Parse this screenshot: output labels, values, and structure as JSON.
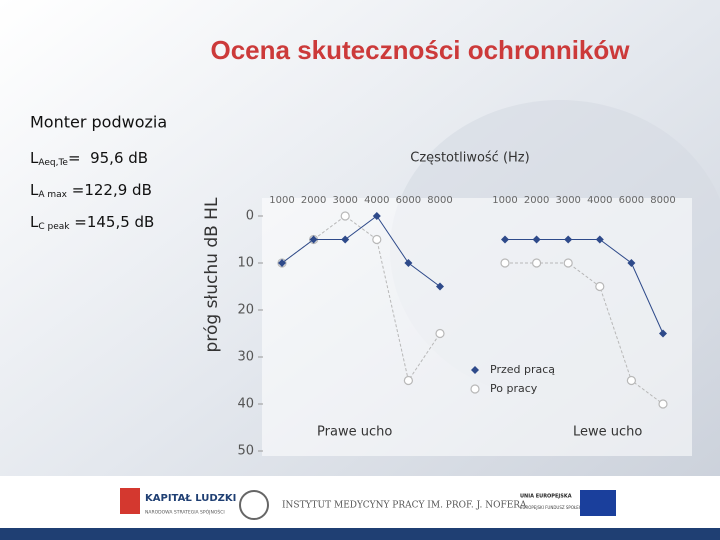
{
  "slide": {
    "title": "Ocena skuteczności ochronników",
    "subtitle": "Monter podwozia",
    "measures": [
      {
        "symbol": "L",
        "sub": "Aeq,Te",
        "value": "=  95,6 dB"
      },
      {
        "symbol": "L",
        "sub": "A max",
        "value": " =122,9 dB"
      },
      {
        "symbol": "L",
        "sub": "C peak",
        "value": " =145,5 dB"
      }
    ],
    "footer": {
      "logo1": "KAPITAŁ LUDZKI",
      "logo1_sub": "NARODOWA STRATEGIA SPÓJNOŚCI",
      "logo2": "INSTYTUT MEDYCYNY PRACY IM. PROF. J. NOFERA",
      "logo3": "UNIA EUROPEJSKA",
      "logo3_sub": "EUROPEJSKI FUNDUSZ SPOŁECZNY"
    }
  },
  "chart_data": {
    "type": "line",
    "x_label": "Częstotliwość (Hz)",
    "y_label": "próg słuchu dB HL",
    "ylim": [
      0,
      50
    ],
    "y_inverted": true,
    "yticks": [
      0,
      10,
      20,
      30,
      40,
      50
    ],
    "panels": [
      {
        "label": "Prawe ucho",
        "categories": [
          "1000",
          "2000",
          "3000",
          "4000",
          "6000",
          "8000"
        ]
      },
      {
        "label": "Lewe ucho",
        "categories": [
          "1000",
          "2000",
          "3000",
          "4000",
          "6000",
          "8000"
        ]
      }
    ],
    "series": [
      {
        "name": "Przed pracą",
        "color": "#2e4a8a",
        "marker": "diamond",
        "values": [
          10,
          5,
          5,
          0,
          10,
          15,
          5,
          5,
          5,
          5,
          10,
          25
        ]
      },
      {
        "name": "Po pracy",
        "color": "#b8b8b8",
        "marker": "circle",
        "values": [
          10,
          5,
          0,
          5,
          35,
          25,
          10,
          10,
          10,
          15,
          35,
          40
        ]
      }
    ]
  }
}
